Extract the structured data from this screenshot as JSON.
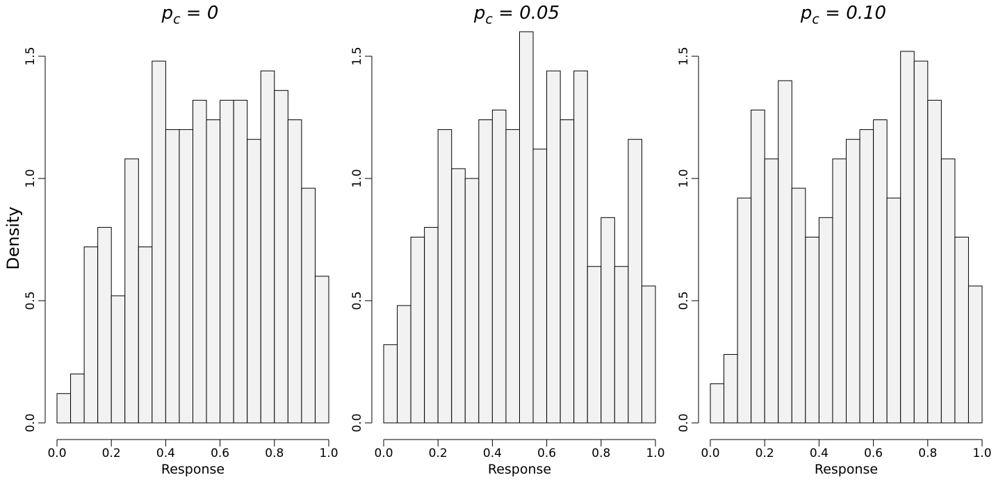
{
  "figure": {
    "ylabel": "Density",
    "bar_fill": "#f2f2f2",
    "bar_stroke": "#000000"
  },
  "chart_data": [
    {
      "type": "bar",
      "title": {
        "symbol": "p",
        "subscript": "c",
        "rest": " = 0"
      },
      "xlabel": "Response",
      "ylabel": "Density",
      "xlim": [
        0,
        1
      ],
      "ylim": [
        0,
        1.5
      ],
      "xticks": [
        0.0,
        0.2,
        0.4,
        0.6,
        0.8,
        1.0
      ],
      "xtick_labels": [
        "0.0",
        "0.2",
        "0.4",
        "0.6",
        "0.8",
        "1.0"
      ],
      "yticks": [
        0.0,
        0.5,
        1.0,
        1.5
      ],
      "ytick_labels": [
        "0.0",
        "0.5",
        "1.0",
        "1.5"
      ],
      "bin_edges": [
        0,
        0.05,
        0.1,
        0.15,
        0.2,
        0.25,
        0.3,
        0.35,
        0.4,
        0.45,
        0.5,
        0.55,
        0.6,
        0.65,
        0.7,
        0.75,
        0.8,
        0.85,
        0.9,
        0.95,
        1.0
      ],
      "values": [
        0.12,
        0.2,
        0.72,
        0.8,
        0.52,
        1.08,
        0.72,
        1.48,
        1.2,
        1.2,
        1.32,
        1.24,
        1.32,
        1.32,
        1.16,
        1.44,
        1.36,
        1.24,
        0.96,
        0.6
      ],
      "grid": false
    },
    {
      "type": "bar",
      "title": {
        "symbol": "p",
        "subscript": "c",
        "rest": " = 0.05"
      },
      "xlabel": "Response",
      "ylabel": "",
      "xlim": [
        0,
        1
      ],
      "ylim": [
        0,
        1.5
      ],
      "xticks": [
        0.0,
        0.2,
        0.4,
        0.6,
        0.8,
        1.0
      ],
      "xtick_labels": [
        "0.0",
        "0.2",
        "0.4",
        "0.6",
        "0.8",
        "1.0"
      ],
      "yticks": [
        0.0,
        0.5,
        1.0,
        1.5
      ],
      "ytick_labels": [
        "0.0",
        "0.5",
        "1.0",
        "1.5"
      ],
      "bin_edges": [
        0,
        0.05,
        0.1,
        0.15,
        0.2,
        0.25,
        0.3,
        0.35,
        0.4,
        0.45,
        0.5,
        0.55,
        0.6,
        0.65,
        0.7,
        0.75,
        0.8,
        0.85,
        0.9,
        0.95,
        1.0
      ],
      "values": [
        0.32,
        0.48,
        0.76,
        0.8,
        1.2,
        1.04,
        1.0,
        1.24,
        1.28,
        1.2,
        1.6,
        1.12,
        1.44,
        1.24,
        1.44,
        0.64,
        0.84,
        0.64,
        1.16,
        0.56
      ],
      "grid": false
    },
    {
      "type": "bar",
      "title": {
        "symbol": "p",
        "subscript": "c",
        "rest": " = 0.10"
      },
      "xlabel": "Response",
      "ylabel": "",
      "xlim": [
        0,
        1
      ],
      "ylim": [
        0,
        1.5
      ],
      "xticks": [
        0.0,
        0.2,
        0.4,
        0.6,
        0.8,
        1.0
      ],
      "xtick_labels": [
        "0.0",
        "0.2",
        "0.4",
        "0.6",
        "0.8",
        "1.0"
      ],
      "yticks": [
        0.0,
        0.5,
        1.0,
        1.5
      ],
      "ytick_labels": [
        "0.0",
        "0.5",
        "1.0",
        "1.5"
      ],
      "bin_edges": [
        0,
        0.05,
        0.1,
        0.15,
        0.2,
        0.25,
        0.3,
        0.35,
        0.4,
        0.45,
        0.5,
        0.55,
        0.6,
        0.65,
        0.7,
        0.75,
        0.8,
        0.85,
        0.9,
        0.95,
        1.0
      ],
      "values": [
        0.16,
        0.28,
        0.92,
        1.28,
        1.08,
        1.4,
        0.96,
        0.76,
        0.84,
        1.08,
        1.16,
        1.2,
        1.24,
        0.92,
        1.52,
        1.48,
        1.32,
        1.08,
        0.76,
        0.56
      ],
      "grid": false
    }
  ]
}
